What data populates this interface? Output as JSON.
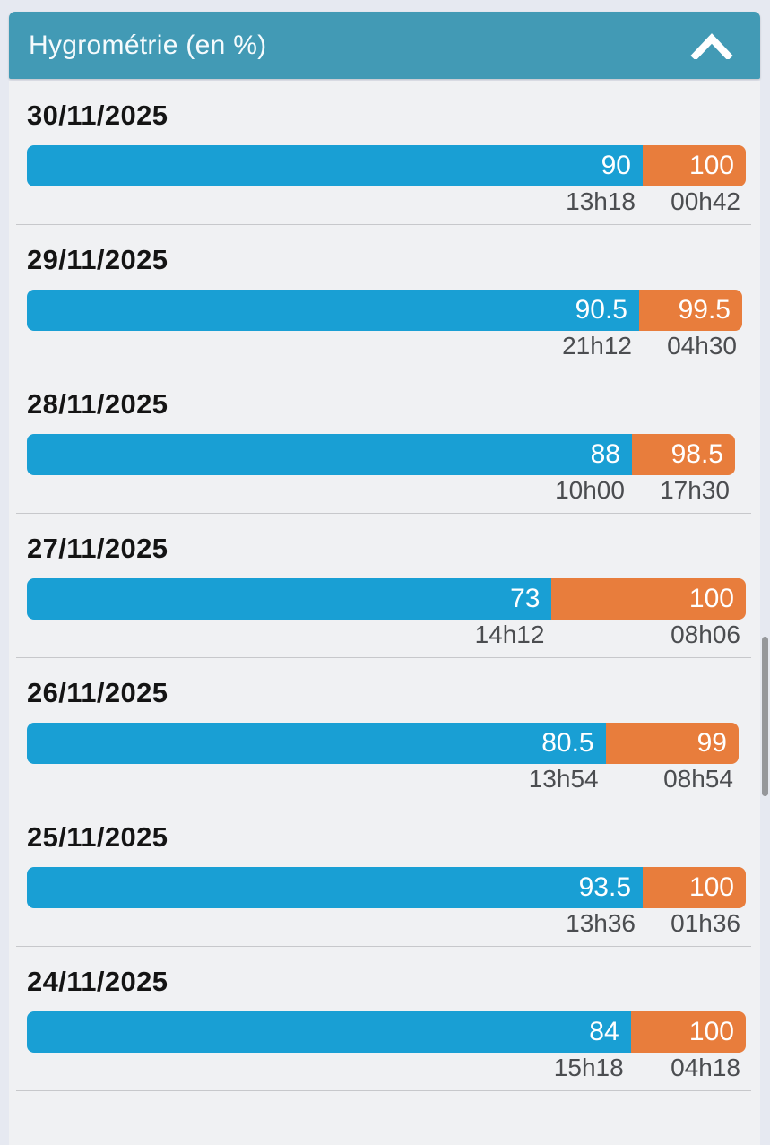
{
  "header": {
    "title": "Hygrométrie (en %)",
    "collapse_icon": "chevron-up-icon"
  },
  "colors": {
    "header_bg": "#429ab5",
    "min_bar_blue": "#199fd4",
    "max_bar_orange": "#e87d3c",
    "card_bg": "#f0f1f3",
    "page_bg": "#e6e9f1"
  },
  "chart_data": {
    "type": "bar",
    "title": "Hygrométrie (en %)",
    "unit": "%",
    "axis_range": [
      0,
      100
    ],
    "series_semantics": {
      "blue_segment": "minimum humidity of the day with time of occurrence",
      "orange_segment": "maximum humidity of the day with time of occurrence"
    },
    "rows": [
      {
        "date": "30/11/2025",
        "min": 90,
        "max": 100,
        "min_time": "13h18",
        "max_time": "00h42"
      },
      {
        "date": "29/11/2025",
        "min": 90.5,
        "max": 99.5,
        "min_time": "21h12",
        "max_time": "04h30"
      },
      {
        "date": "28/11/2025",
        "min": 88,
        "max": 98.5,
        "min_time": "10h00",
        "max_time": "17h30"
      },
      {
        "date": "27/11/2025",
        "min": 73,
        "max": 100,
        "min_time": "14h12",
        "max_time": "08h06"
      },
      {
        "date": "26/11/2025",
        "min": 80.5,
        "max": 99,
        "min_time": "13h54",
        "max_time": "08h54"
      },
      {
        "date": "25/11/2025",
        "min": 93.5,
        "max": 100,
        "min_time": "13h36",
        "max_time": "01h36"
      },
      {
        "date": "24/11/2025",
        "min": 84,
        "max": 100,
        "min_time": "15h18",
        "max_time": "04h18"
      }
    ]
  }
}
